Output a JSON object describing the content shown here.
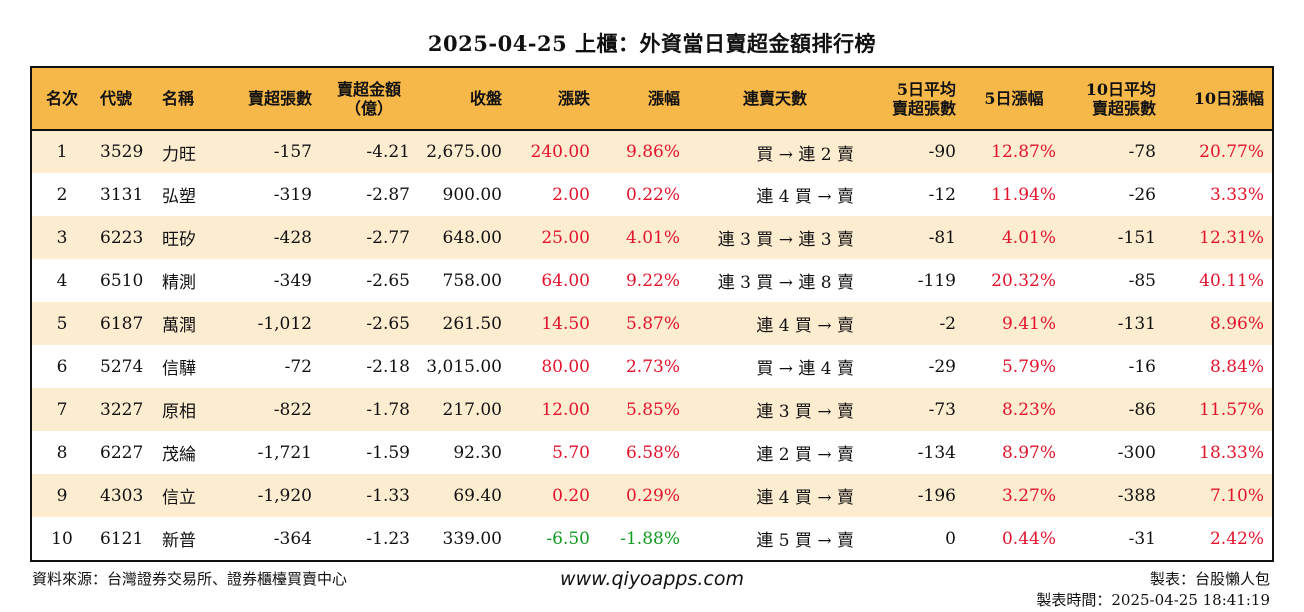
{
  "title": "2025-04-25 上櫃：外資當日賣超金額排行榜",
  "headers": {
    "rank": "名次",
    "code": "代號",
    "name": "名稱",
    "net_sell_lots": "賣超張數",
    "net_sell_amount_1": "賣超金額",
    "net_sell_amount_2": "（億）",
    "close": "收盤",
    "change": "漲跌",
    "change_pct": "漲幅",
    "streak": "連賣天數",
    "avg5_1": "5日平均",
    "avg5_2": "賣超張數",
    "pct5": "5日漲幅",
    "avg10_1": "10日平均",
    "avg10_2": "賣超張數",
    "pct10": "10日漲幅"
  },
  "rows": [
    {
      "rank": "1",
      "code": "3529",
      "name": "力旺",
      "lots": "-157",
      "amount": "-4.21",
      "close": "2,675.00",
      "change": "240.00",
      "pct": "9.86%",
      "streak": "買 → 連 2 賣",
      "avg5": "-90",
      "pct5": "12.87%",
      "avg10": "-78",
      "pct10": "20.77%"
    },
    {
      "rank": "2",
      "code": "3131",
      "name": "弘塑",
      "lots": "-319",
      "amount": "-2.87",
      "close": "900.00",
      "change": "2.00",
      "pct": "0.22%",
      "streak": "連 4 買 → 賣",
      "avg5": "-12",
      "pct5": "11.94%",
      "avg10": "-26",
      "pct10": "3.33%"
    },
    {
      "rank": "3",
      "code": "6223",
      "name": "旺矽",
      "lots": "-428",
      "amount": "-2.77",
      "close": "648.00",
      "change": "25.00",
      "pct": "4.01%",
      "streak": "連 3 買 → 連 3 賣",
      "avg5": "-81",
      "pct5": "4.01%",
      "avg10": "-151",
      "pct10": "12.31%"
    },
    {
      "rank": "4",
      "code": "6510",
      "name": "精測",
      "lots": "-349",
      "amount": "-2.65",
      "close": "758.00",
      "change": "64.00",
      "pct": "9.22%",
      "streak": "連 3 買 → 連 8 賣",
      "avg5": "-119",
      "pct5": "20.32%",
      "avg10": "-85",
      "pct10": "40.11%"
    },
    {
      "rank": "5",
      "code": "6187",
      "name": "萬潤",
      "lots": "-1,012",
      "amount": "-2.65",
      "close": "261.50",
      "change": "14.50",
      "pct": "5.87%",
      "streak": "連 4 買 → 賣",
      "avg5": "-2",
      "pct5": "9.41%",
      "avg10": "-131",
      "pct10": "8.96%"
    },
    {
      "rank": "6",
      "code": "5274",
      "name": "信驊",
      "lots": "-72",
      "amount": "-2.18",
      "close": "3,015.00",
      "change": "80.00",
      "pct": "2.73%",
      "streak": "買 → 連 4 賣",
      "avg5": "-29",
      "pct5": "5.79%",
      "avg10": "-16",
      "pct10": "8.84%"
    },
    {
      "rank": "7",
      "code": "3227",
      "name": "原相",
      "lots": "-822",
      "amount": "-1.78",
      "close": "217.00",
      "change": "12.00",
      "pct": "5.85%",
      "streak": "連 3 買 → 賣",
      "avg5": "-73",
      "pct5": "8.23%",
      "avg10": "-86",
      "pct10": "11.57%"
    },
    {
      "rank": "8",
      "code": "6227",
      "name": "茂綸",
      "lots": "-1,721",
      "amount": "-1.59",
      "close": "92.30",
      "change": "5.70",
      "pct": "6.58%",
      "streak": "連 2 買 → 賣",
      "avg5": "-134",
      "pct5": "8.97%",
      "avg10": "-300",
      "pct10": "18.33%"
    },
    {
      "rank": "9",
      "code": "4303",
      "name": "信立",
      "lots": "-1,920",
      "amount": "-1.33",
      "close": "69.40",
      "change": "0.20",
      "pct": "0.29%",
      "streak": "連 4 買 → 賣",
      "avg5": "-196",
      "pct5": "3.27%",
      "avg10": "-388",
      "pct10": "7.10%"
    },
    {
      "rank": "10",
      "code": "6121",
      "name": "新普",
      "lots": "-364",
      "amount": "-1.23",
      "close": "339.00",
      "change": "-6.50",
      "pct": "-1.88%",
      "streak": "連 5 買 → 賣",
      "avg5": "0",
      "pct5": "0.44%",
      "avg10": "-31",
      "pct10": "2.42%"
    }
  ],
  "colors": {
    "header_bg": "#f7b84a",
    "row_alt_bg": "#fcecd0",
    "up": "#e3132b",
    "down": "#129a22"
  },
  "footer": {
    "source": "資料來源：台灣證券交易所、證券櫃檯買賣中心",
    "website": "www.qiyoapps.com",
    "maker": "製表：台股懶人包",
    "made_time": "製表時間：2025-04-25 18:41:19"
  }
}
